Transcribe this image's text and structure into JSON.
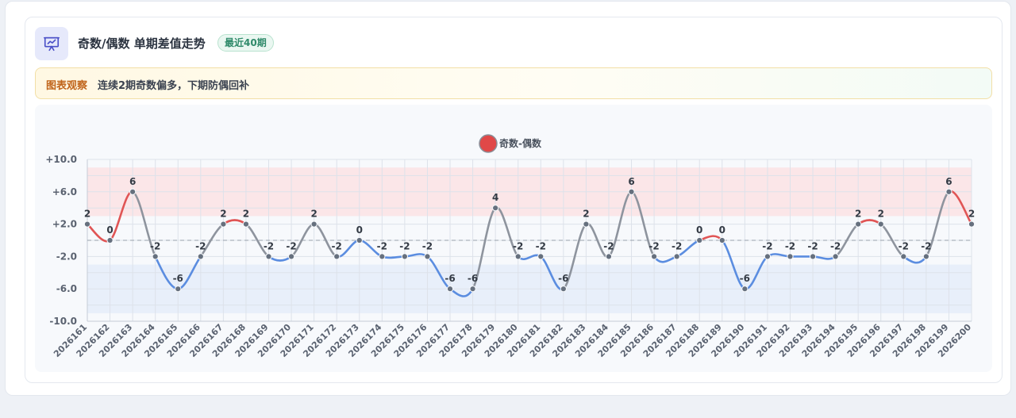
{
  "header": {
    "title": "奇数/偶数 单期差值走势",
    "badge": "最近40期",
    "icon": "presentation-chart-icon"
  },
  "observation": {
    "tag": "图表观察",
    "text": "连续2期奇数偏多，下期防偶回补"
  },
  "colors": {
    "positive": "#e05555",
    "negative": "#5b8de0",
    "neutral": "#8e949e",
    "band_positive": "#fbe3e6",
    "band_negative": "#e6edfa",
    "legend": "#e04848"
  },
  "chart_data": {
    "type": "line",
    "legend": [
      "奇数-偶数"
    ],
    "x": [
      "2026161",
      "2026162",
      "2026163",
      "2026164",
      "2026165",
      "2026166",
      "2026167",
      "2026168",
      "2026169",
      "2026170",
      "2026171",
      "2026172",
      "2026173",
      "2026174",
      "2026175",
      "2026176",
      "2026177",
      "2026178",
      "2026179",
      "2026180",
      "2026181",
      "2026182",
      "2026183",
      "2026184",
      "2026185",
      "2026186",
      "2026187",
      "2026188",
      "2026189",
      "2026190",
      "2026191",
      "2026192",
      "2026193",
      "2026194",
      "2026195",
      "2026196",
      "2026197",
      "2026198",
      "2026199",
      "2026200"
    ],
    "series": [
      {
        "name": "奇数-偶数",
        "values": [
          2,
          0,
          6,
          -2,
          -6,
          -2,
          2,
          2,
          -2,
          -2,
          2,
          -2,
          0,
          -2,
          -2,
          -2,
          -6,
          -6,
          4,
          -2,
          -2,
          -6,
          2,
          -2,
          6,
          -2,
          -2,
          0,
          0,
          -6,
          -2,
          -2,
          -2,
          -2,
          2,
          2,
          -2,
          -2,
          6,
          2
        ]
      }
    ],
    "yticks": [
      "+10.0",
      "+6.0",
      "+2.0",
      "-2.0",
      "-6.0",
      "-10.0"
    ],
    "ylim": [
      -10,
      10
    ],
    "bands": [
      {
        "from": 3,
        "to": 9,
        "kind": "positive"
      },
      {
        "from": -9,
        "to": -3,
        "kind": "negative"
      }
    ],
    "reference_line": 0,
    "grid": true,
    "legend_position": "top-center"
  }
}
